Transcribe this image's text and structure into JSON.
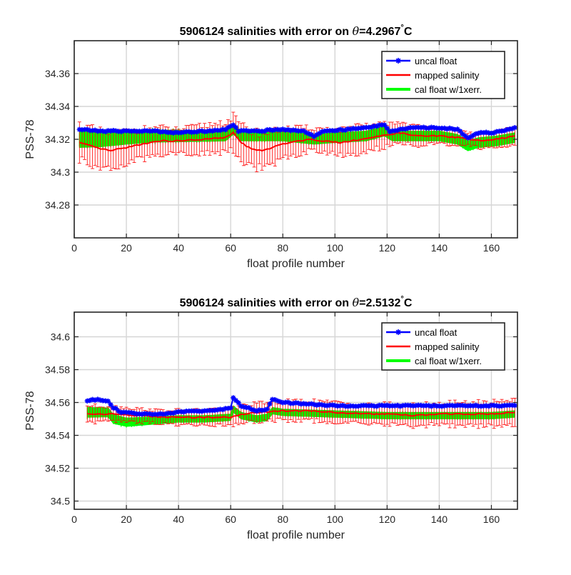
{
  "chart_data": [
    {
      "type": "line",
      "title": "5906124 salinities with error on θ=4.2967°C",
      "title_text": "5906124 salinities with error on ",
      "title_theta": "θ",
      "title_value": "=4.2967",
      "title_degree": "°",
      "title_unit": "C",
      "xlabel": "float profile number",
      "ylabel": "PSS-78",
      "xlim": [
        0,
        170
      ],
      "ylim": [
        34.26,
        34.38
      ],
      "xticks": [
        0,
        20,
        40,
        60,
        80,
        100,
        120,
        140,
        160
      ],
      "xtick_labels": [
        "0",
        "20",
        "40",
        "60",
        "80",
        "100",
        "120",
        "140",
        "160"
      ],
      "yticks": [
        34.28,
        34.3,
        34.32,
        34.34,
        34.36
      ],
      "ytick_labels": [
        "34.28",
        "34.3",
        "34.32",
        "34.34",
        "34.36"
      ],
      "grid": true,
      "legend_position": "top-right",
      "x_first": 2,
      "x_last": 169,
      "series": [
        {
          "name": "uncal float",
          "color": "#0000ff",
          "marker": "asterisk",
          "keypoints": [
            [
              2,
              34.326
            ],
            [
              10,
              34.325
            ],
            [
              20,
              34.325
            ],
            [
              30,
              34.325
            ],
            [
              40,
              34.324
            ],
            [
              50,
              34.325
            ],
            [
              58,
              34.326
            ],
            [
              61,
              34.329
            ],
            [
              63,
              34.325
            ],
            [
              70,
              34.325
            ],
            [
              80,
              34.326
            ],
            [
              88,
              34.325
            ],
            [
              92,
              34.322
            ],
            [
              96,
              34.325
            ],
            [
              105,
              34.326
            ],
            [
              112,
              34.327
            ],
            [
              119,
              34.329
            ],
            [
              121,
              34.325
            ],
            [
              130,
              34.327
            ],
            [
              140,
              34.327
            ],
            [
              147,
              34.326
            ],
            [
              151,
              34.321
            ],
            [
              155,
              34.324
            ],
            [
              160,
              34.324
            ],
            [
              165,
              34.325
            ],
            [
              169,
              34.327
            ]
          ]
        },
        {
          "name": "mapped salinity",
          "color": "#ff0000",
          "keypoints": [
            [
              2,
              34.318
            ],
            [
              8,
              34.315
            ],
            [
              14,
              34.313
            ],
            [
              20,
              34.315
            ],
            [
              26,
              34.317
            ],
            [
              32,
              34.319
            ],
            [
              40,
              34.319
            ],
            [
              50,
              34.32
            ],
            [
              58,
              34.321
            ],
            [
              61,
              34.324
            ],
            [
              64,
              34.318
            ],
            [
              68,
              34.314
            ],
            [
              72,
              34.313
            ],
            [
              76,
              34.315
            ],
            [
              82,
              34.318
            ],
            [
              90,
              34.32
            ],
            [
              96,
              34.319
            ],
            [
              102,
              34.318
            ],
            [
              110,
              34.32
            ],
            [
              118,
              34.322
            ],
            [
              124,
              34.324
            ],
            [
              132,
              34.322
            ],
            [
              140,
              34.322
            ],
            [
              148,
              34.321
            ],
            [
              156,
              34.319
            ],
            [
              162,
              34.32
            ],
            [
              169,
              34.322
            ]
          ],
          "error_keypoints": [
            [
              2,
              0.011
            ],
            [
              20,
              0.01
            ],
            [
              40,
              0.007
            ],
            [
              60,
              0.01
            ],
            [
              70,
              0.011
            ],
            [
              90,
              0.007
            ],
            [
              110,
              0.008
            ],
            [
              130,
              0.006
            ],
            [
              150,
              0.004
            ],
            [
              169,
              0.005
            ]
          ]
        },
        {
          "name": "cal float w/1xerr.",
          "color": "#00ff00",
          "keypoints": [
            [
              2,
              34.32
            ],
            [
              10,
              34.32
            ],
            [
              20,
              34.321
            ],
            [
              30,
              34.322
            ],
            [
              40,
              34.322
            ],
            [
              50,
              34.322
            ],
            [
              58,
              34.322
            ],
            [
              61,
              34.326
            ],
            [
              64,
              34.322
            ],
            [
              80,
              34.322
            ],
            [
              92,
              34.32
            ],
            [
              100,
              34.321
            ],
            [
              112,
              34.322
            ],
            [
              119,
              34.325
            ],
            [
              122,
              34.322
            ],
            [
              140,
              34.322
            ],
            [
              147,
              34.32
            ],
            [
              151,
              34.316
            ],
            [
              155,
              34.318
            ],
            [
              162,
              34.319
            ],
            [
              169,
              34.321
            ]
          ],
          "error_keypoints": [
            [
              2,
              0.005
            ],
            [
              20,
              0.004
            ],
            [
              60,
              0.003
            ],
            [
              100,
              0.003
            ],
            [
              140,
              0.003
            ],
            [
              151,
              0.003
            ],
            [
              169,
              0.003
            ]
          ]
        }
      ]
    },
    {
      "type": "line",
      "title": "5906124 salinities with error on θ=2.5132°C",
      "title_text": "5906124 salinities with error on ",
      "title_theta": "θ",
      "title_value": "=2.5132",
      "title_degree": "°",
      "title_unit": "C",
      "xlabel": "float profile number",
      "ylabel": "PSS-78",
      "xlim": [
        0,
        170
      ],
      "ylim": [
        34.495,
        34.615
      ],
      "xticks": [
        0,
        20,
        40,
        60,
        80,
        100,
        120,
        140,
        160
      ],
      "xtick_labels": [
        "0",
        "20",
        "40",
        "60",
        "80",
        "100",
        "120",
        "140",
        "160"
      ],
      "yticks": [
        34.5,
        34.52,
        34.54,
        34.56,
        34.58,
        34.6
      ],
      "ytick_labels": [
        "34.5",
        "34.52",
        "34.54",
        "34.56",
        "34.58",
        "34.6"
      ],
      "grid": true,
      "legend_position": "top-right",
      "x_first": 5,
      "x_last": 169,
      "series": [
        {
          "name": "uncal float",
          "color": "#0000ff",
          "marker": "asterisk",
          "keypoints": [
            [
              5,
              34.561
            ],
            [
              9,
              34.562
            ],
            [
              13,
              34.561
            ],
            [
              15,
              34.557
            ],
            [
              18,
              34.554
            ],
            [
              25,
              34.553
            ],
            [
              33,
              34.553
            ],
            [
              40,
              34.554
            ],
            [
              46,
              34.555
            ],
            [
              52,
              34.555
            ],
            [
              58,
              34.556
            ],
            [
              60,
              34.557
            ],
            [
              61,
              34.563
            ],
            [
              64,
              34.558
            ],
            [
              70,
              34.555
            ],
            [
              74,
              34.556
            ],
            [
              76,
              34.562
            ],
            [
              80,
              34.56
            ],
            [
              90,
              34.559
            ],
            [
              100,
              34.558
            ],
            [
              110,
              34.558
            ],
            [
              120,
              34.558
            ],
            [
              130,
              34.558
            ],
            [
              140,
              34.558
            ],
            [
              150,
              34.558
            ],
            [
              160,
              34.558
            ],
            [
              169,
              34.558
            ]
          ]
        },
        {
          "name": "mapped salinity",
          "color": "#ff0000",
          "keypoints": [
            [
              5,
              34.553
            ],
            [
              15,
              34.553
            ],
            [
              25,
              34.552
            ],
            [
              35,
              34.551
            ],
            [
              45,
              34.551
            ],
            [
              55,
              34.551
            ],
            [
              60,
              34.551
            ],
            [
              65,
              34.553
            ],
            [
              70,
              34.554
            ],
            [
              80,
              34.555
            ],
            [
              90,
              34.555
            ],
            [
              100,
              34.554
            ],
            [
              110,
              34.553
            ],
            [
              120,
              34.553
            ],
            [
              130,
              34.552
            ],
            [
              140,
              34.553
            ],
            [
              150,
              34.553
            ],
            [
              160,
              34.553
            ],
            [
              169,
              34.554
            ]
          ],
          "error_keypoints": [
            [
              5,
              0.005
            ],
            [
              30,
              0.004
            ],
            [
              60,
              0.005
            ],
            [
              90,
              0.006
            ],
            [
              120,
              0.006
            ],
            [
              150,
              0.007
            ],
            [
              169,
              0.008
            ]
          ]
        },
        {
          "name": "cal float w/1xerr.",
          "color": "#00ff00",
          "keypoints": [
            [
              5,
              34.554
            ],
            [
              13,
              34.554
            ],
            [
              15,
              34.55
            ],
            [
              20,
              34.548
            ],
            [
              30,
              34.549
            ],
            [
              40,
              34.55
            ],
            [
              50,
              34.55
            ],
            [
              60,
              34.551
            ],
            [
              61,
              34.556
            ],
            [
              64,
              34.552
            ],
            [
              70,
              34.55
            ],
            [
              74,
              34.551
            ],
            [
              76,
              34.555
            ],
            [
              80,
              34.554
            ],
            [
              100,
              34.553
            ],
            [
              120,
              34.552
            ],
            [
              140,
              34.552
            ],
            [
              160,
              34.552
            ],
            [
              169,
              34.553
            ]
          ],
          "error_keypoints": [
            [
              5,
              0.003
            ],
            [
              40,
              0.002
            ],
            [
              80,
              0.002
            ],
            [
              120,
              0.002
            ],
            [
              169,
              0.002
            ]
          ]
        }
      ]
    }
  ]
}
